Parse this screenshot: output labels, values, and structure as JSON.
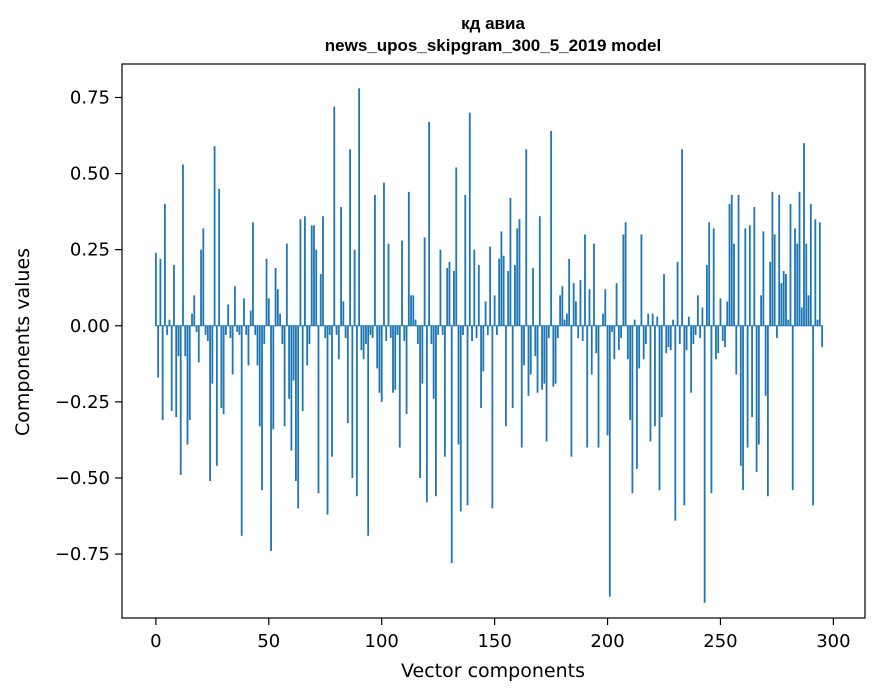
{
  "chart_data": {
    "type": "bar",
    "title_line1": "кд авиа",
    "title_line2": "news_upos_skipgram_300_5_2019 model",
    "xlabel": "Vector components",
    "ylabel": "Components values",
    "xlim": [
      -15,
      314
    ],
    "ylim": [
      -0.96,
      0.86
    ],
    "xticks": [
      0,
      50,
      100,
      150,
      200,
      250,
      300
    ],
    "xtick_labels": [
      "0",
      "50",
      "100",
      "150",
      "200",
      "250",
      "300"
    ],
    "yticks": [
      -0.75,
      -0.5,
      -0.25,
      0.0,
      0.25,
      0.5,
      0.75
    ],
    "ytick_labels": [
      "−0.75",
      "−0.50",
      "−0.25",
      "0.00",
      "0.25",
      "0.50",
      "0.75"
    ],
    "bar_color": "#1f77b4",
    "grid": false,
    "values": [
      0.24,
      -0.17,
      0.22,
      -0.31,
      0.4,
      -0.03,
      0.02,
      -0.28,
      0.2,
      -0.3,
      -0.1,
      -0.49,
      0.53,
      -0.1,
      -0.39,
      -0.31,
      0.04,
      0.1,
      -0.02,
      -0.12,
      0.25,
      0.32,
      -0.03,
      -0.05,
      -0.51,
      -0.19,
      0.59,
      -0.46,
      0.45,
      -0.27,
      -0.29,
      -0.03,
      0.07,
      -0.04,
      -0.16,
      0.13,
      -0.02,
      -0.03,
      -0.69,
      0.09,
      -0.03,
      -0.13,
      0.05,
      0.34,
      -0.03,
      -0.13,
      -0.33,
      -0.54,
      -0.06,
      0.22,
      0.09,
      -0.74,
      -0.34,
      0.19,
      0.12,
      0.04,
      -0.06,
      -0.33,
      0.27,
      -0.24,
      -0.41,
      -0.18,
      -0.51,
      -0.6,
      0.35,
      -0.28,
      0.36,
      -0.13,
      -0.06,
      0.33,
      0.33,
      0.25,
      -0.55,
      0.17,
      0.36,
      -0.04,
      -0.62,
      -0.03,
      -0.43,
      0.72,
      -0.03,
      -0.11,
      0.39,
      0.08,
      -0.04,
      -0.32,
      0.58,
      -0.5,
      0.25,
      -0.56,
      0.78,
      -0.08,
      -0.11,
      -0.06,
      -0.69,
      -0.03,
      -0.04,
      0.43,
      -0.14,
      -0.22,
      -0.25,
      0.47,
      -0.05,
      0.27,
      -0.04,
      -0.22,
      -0.21,
      -0.03,
      -0.4,
      0.28,
      -0.05,
      -0.29,
      0.44,
      0.1,
      0.1,
      0.02,
      -0.06,
      -0.5,
      -0.19,
      0.29,
      -0.58,
      0.67,
      -0.06,
      -0.24,
      -0.56,
      -0.03,
      0.25,
      -0.03,
      -0.43,
      0.19,
      0.21,
      -0.78,
      0.18,
      0.52,
      -0.39,
      -0.61,
      -0.03,
      0.43,
      -0.59,
      0.7,
      -0.05,
      0.25,
      -0.04,
      0.2,
      -0.27,
      -0.15,
      0.08,
      -0.03,
      0.26,
      -0.6,
      0.1,
      -0.03,
      0.22,
      0.31,
      0.23,
      -0.33,
      0.18,
      0.42,
      -0.27,
      0.2,
      0.32,
      0.35,
      -0.4,
      -0.13,
      0.58,
      -0.23,
      -0.16,
      0.19,
      -0.1,
      -0.22,
      0.36,
      -0.21,
      -0.19,
      -0.38,
      -0.04,
      0.64,
      -0.2,
      -0.19,
      -0.04,
      0.1,
      0.13,
      0.02,
      0.04,
      0.22,
      -0.43,
      0.14,
      0.08,
      -0.04,
      0.15,
      -0.05,
      0.3,
      -0.4,
      0.12,
      -0.16,
      0.27,
      -0.09,
      -0.4,
      0.0,
      0.04,
      0.12,
      -0.36,
      -0.89,
      -0.02,
      -0.11,
      0.14,
      -0.08,
      -0.04,
      0.3,
      0.34,
      -0.11,
      -0.31,
      -0.55,
      0.02,
      -0.47,
      -0.14,
      0.3,
      -0.11,
      -0.06,
      0.04,
      -0.38,
      0.04,
      -0.33,
      0.03,
      -0.54,
      -0.3,
      0.17,
      -0.09,
      -0.07,
      -0.08,
      0.02,
      -0.64,
      0.21,
      -0.06,
      0.58,
      -0.59,
      -0.08,
      0.03,
      -0.22,
      -0.06,
      -0.03,
      0.1,
      -0.04,
      0.06,
      -0.91,
      0.2,
      0.34,
      -0.55,
      0.32,
      -0.11,
      -0.09,
      0.09,
      -0.05,
      -0.07,
      0.08,
      0.4,
      0.43,
      0.27,
      -0.16,
      0.43,
      -0.46,
      -0.54,
      0.32,
      -0.4,
      0.33,
      -0.3,
      0.39,
      -0.48,
      -0.39,
      0.1,
      0.31,
      -0.23,
      -0.56,
      0.21,
      0.44,
      0.3,
      -0.04,
      0.43,
      0.14,
      0.18,
      0.17,
      0.02,
      0.4,
      -0.54,
      0.32,
      0.27,
      0.44,
      0.06,
      0.6,
      0.27,
      0.1,
      0.4,
      -0.59,
      0.35,
      0.02,
      0.34,
      -0.07
    ]
  }
}
